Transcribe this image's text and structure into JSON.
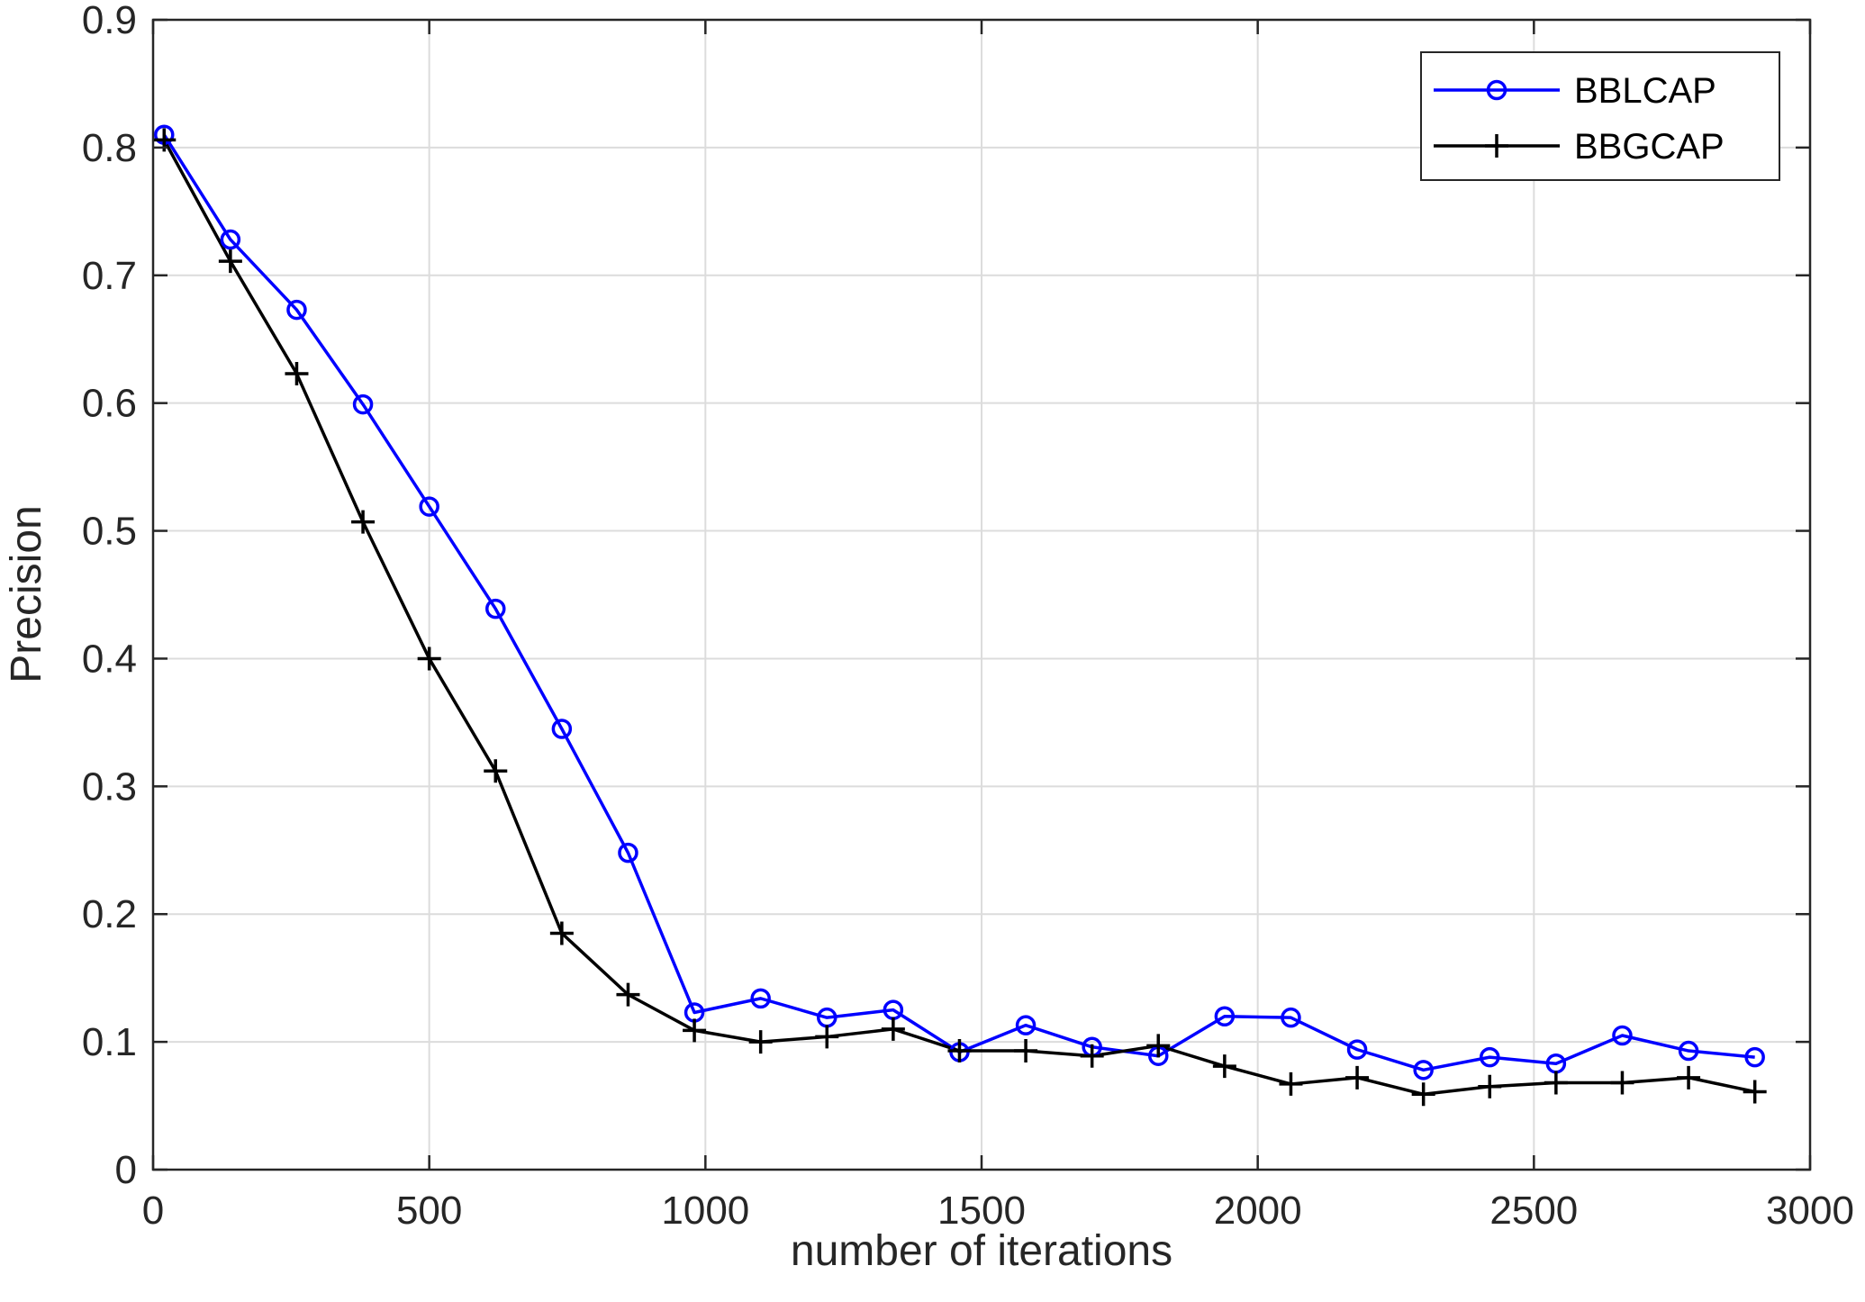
{
  "chart_data": {
    "type": "line",
    "title": "",
    "xlabel": "number of iterations",
    "ylabel": "Precision",
    "xlim": [
      0,
      3000
    ],
    "ylim": [
      0,
      0.9
    ],
    "x_ticks": [
      0,
      500,
      1000,
      1500,
      2000,
      2500,
      3000
    ],
    "y_ticks": [
      0,
      0.1,
      0.2,
      0.3,
      0.4,
      0.5,
      0.6,
      0.7,
      0.8,
      0.9
    ],
    "x_tick_labels": [
      "0",
      "500",
      "1000",
      "1500",
      "2000",
      "2500",
      "3000"
    ],
    "y_tick_labels": [
      "0",
      "0.1",
      "0.2",
      "0.3",
      "0.4",
      "0.5",
      "0.6",
      "0.7",
      "0.8",
      "0.9"
    ],
    "grid": true,
    "legend_position": "top-right",
    "x": [
      20,
      140,
      260,
      380,
      500,
      620,
      740,
      860,
      980,
      1100,
      1220,
      1340,
      1460,
      1580,
      1700,
      1820,
      1940,
      2060,
      2180,
      2300,
      2420,
      2540,
      2660,
      2780,
      2900
    ],
    "series": [
      {
        "name": "BBLCAP",
        "color": "#0000ff",
        "marker": "circle",
        "values": [
          0.81,
          0.728,
          0.673,
          0.599,
          0.519,
          0.439,
          0.345,
          0.248,
          0.123,
          0.134,
          0.119,
          0.125,
          0.092,
          0.113,
          0.096,
          0.089,
          0.12,
          0.119,
          0.094,
          0.078,
          0.088,
          0.083,
          0.105,
          0.093,
          0.088
        ]
      },
      {
        "name": "BBGCAP",
        "color": "#000000",
        "marker": "plus",
        "values": [
          0.806,
          0.711,
          0.623,
          0.507,
          0.4,
          0.312,
          0.185,
          0.137,
          0.109,
          0.1,
          0.104,
          0.11,
          0.093,
          0.093,
          0.089,
          0.097,
          0.081,
          0.067,
          0.072,
          0.059,
          0.065,
          0.068,
          0.068,
          0.072,
          0.061
        ]
      }
    ]
  }
}
